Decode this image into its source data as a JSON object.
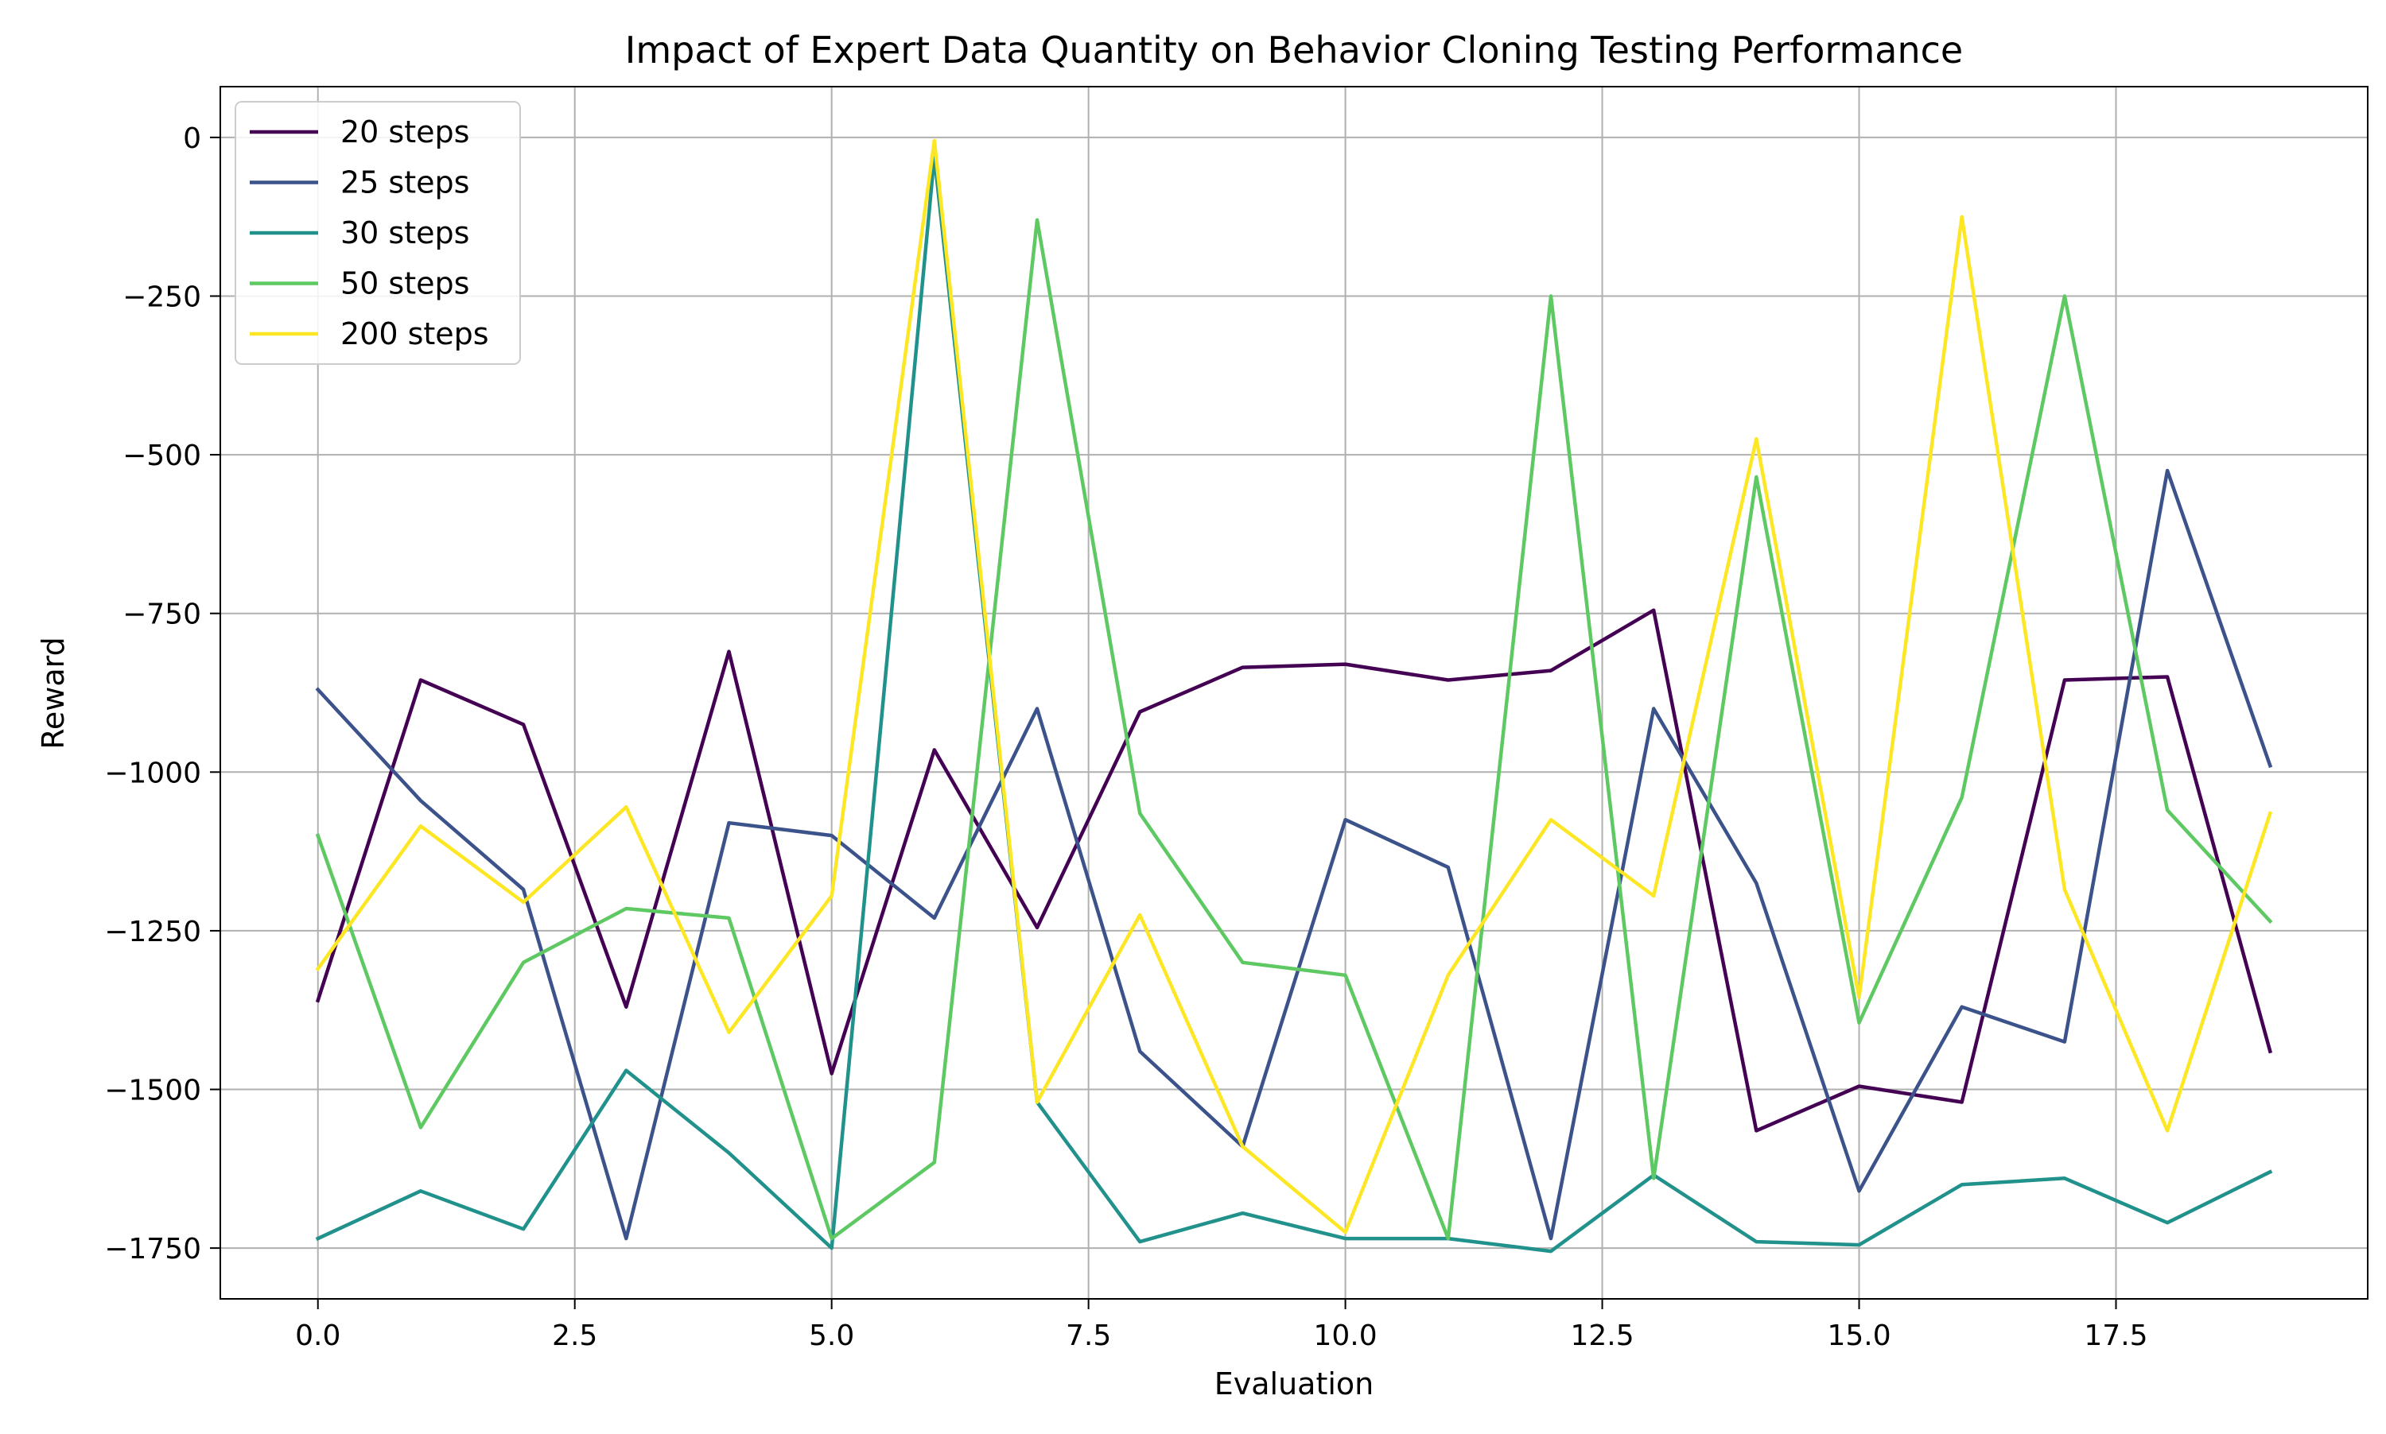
{
  "chart_data": {
    "type": "line",
    "title": "Impact of Expert Data Quantity on Behavior Cloning Testing Performance",
    "xlabel": "Evaluation",
    "ylabel": "Reward",
    "xlim": [
      -0.95,
      19.95
    ],
    "ylim": [
      -1830,
      80
    ],
    "xticks": [
      0.0,
      2.5,
      5.0,
      7.5,
      10.0,
      12.5,
      15.0,
      17.5
    ],
    "xtick_labels": [
      "0.0",
      "2.5",
      "5.0",
      "7.5",
      "10.0",
      "12.5",
      "15.0",
      "17.5"
    ],
    "yticks": [
      0,
      -250,
      -500,
      -750,
      -1000,
      -1250,
      -1500,
      -1750
    ],
    "ytick_labels": [
      "0",
      "−250",
      "−500",
      "−750",
      "−1000",
      "−1250",
      "−1500",
      "−1750"
    ],
    "grid": true,
    "legend_position": "top-left",
    "x": [
      0,
      1,
      2,
      3,
      4,
      5,
      6,
      7,
      8,
      9,
      10,
      11,
      12,
      13,
      14,
      15,
      16,
      17,
      18,
      19
    ],
    "series": [
      {
        "name": "20 steps",
        "color": "#440154",
        "values": [
          -1360,
          -855,
          -925,
          -1370,
          -810,
          -1475,
          -965,
          -1245,
          -905,
          -835,
          -830,
          -855,
          -840,
          -745,
          -1565,
          -1495,
          -1520,
          -855,
          -850,
          -1440
        ]
      },
      {
        "name": "25 steps",
        "color": "#3b528b",
        "values": [
          -870,
          -1045,
          -1185,
          -1735,
          -1080,
          -1100,
          -1230,
          -900,
          -1440,
          -1590,
          -1075,
          -1150,
          -1735,
          -900,
          -1175,
          -1660,
          -1370,
          -1425,
          -525,
          -990
        ]
      },
      {
        "name": "30 steps",
        "color": "#21918c",
        "values": [
          -1735,
          -1660,
          -1720,
          -1470,
          -1600,
          -1750,
          -30,
          -1520,
          -1740,
          -1695,
          -1735,
          -1735,
          -1755,
          -1635,
          -1740,
          -1745,
          -1650,
          -1640,
          -1710,
          -1630
        ]
      },
      {
        "name": "50 steps",
        "color": "#5ec962",
        "values": [
          -1100,
          -1560,
          -1300,
          -1215,
          -1230,
          -1735,
          -1615,
          -130,
          -1065,
          -1300,
          -1320,
          -1735,
          -250,
          -1640,
          -535,
          -1395,
          -1040,
          -250,
          -1060,
          -1235
        ]
      },
      {
        "name": "200 steps",
        "color": "#fde725",
        "values": [
          -1310,
          -1085,
          -1205,
          -1055,
          -1410,
          -1195,
          -5,
          -1520,
          -1225,
          -1590,
          -1725,
          -1320,
          -1075,
          -1195,
          -475,
          -1355,
          -125,
          -1185,
          -1565,
          -1065
        ]
      }
    ]
  }
}
